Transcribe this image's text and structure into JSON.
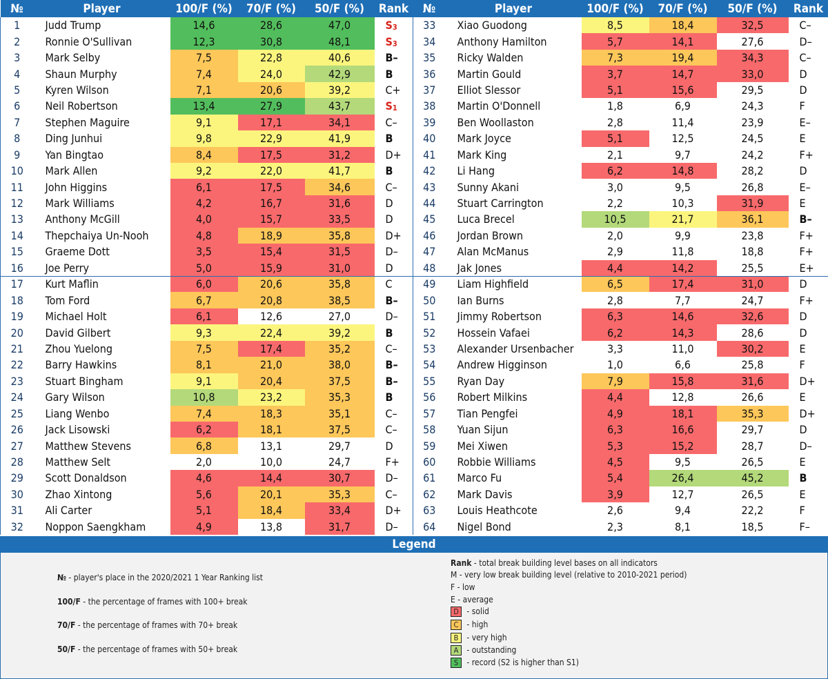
{
  "headers": {
    "num": "№",
    "player": "Player",
    "c100": "100/F (%)",
    "c70": "70/F (%)",
    "c50": "50/F (%)",
    "rank": "Rank"
  },
  "colors": {
    "red": "#f8696b",
    "orange": "#fdc75a",
    "yellow": "#fbf57e",
    "light_green": "#b3d97a",
    "green": "#52bd5c",
    "header_blue": "#1f6fb6"
  },
  "rows": [
    {
      "l": {
        "num": "1",
        "name": "Judd Trump",
        "v100": "14,6",
        "c100": "grn",
        "v70": "28,6",
        "c70": "grn",
        "v50": "47,0",
        "c50": "grn",
        "rank": "S",
        "sub": "3"
      },
      "r": {
        "num": "33",
        "name": "Xiao Guodong",
        "v100": "8,5",
        "c100": "yel",
        "v70": "18,4",
        "c70": "ora",
        "v50": "32,5",
        "c50": "red",
        "rank": "C–"
      }
    },
    {
      "l": {
        "num": "2",
        "name": "Ronnie O'Sullivan",
        "v100": "12,3",
        "c100": "grn",
        "v70": "30,8",
        "c70": "grn",
        "v50": "48,1",
        "c50": "grn",
        "rank": "S",
        "sub": "3"
      },
      "r": {
        "num": "34",
        "name": "Anthony Hamilton",
        "v100": "5,7",
        "c100": "red",
        "v70": "14,1",
        "c70": "red",
        "v50": "27,6",
        "c50": "wht",
        "rank": "D–"
      }
    },
    {
      "l": {
        "num": "3",
        "name": "Mark Selby",
        "v100": "7,5",
        "c100": "ora",
        "v70": "22,8",
        "c70": "yel",
        "v50": "40,6",
        "c50": "yel",
        "rank": "B–"
      },
      "r": {
        "num": "35",
        "name": "Ricky Walden",
        "v100": "7,3",
        "c100": "ora",
        "v70": "19,4",
        "c70": "ora",
        "v50": "34,3",
        "c50": "red",
        "rank": "C–"
      }
    },
    {
      "l": {
        "num": "4",
        "name": "Shaun Murphy",
        "v100": "7,4",
        "c100": "ora",
        "v70": "24,0",
        "c70": "yel",
        "v50": "42,9",
        "c50": "lgr",
        "rank": "B"
      },
      "r": {
        "num": "36",
        "name": "Martin Gould",
        "v100": "3,7",
        "c100": "red",
        "v70": "14,7",
        "c70": "red",
        "v50": "33,0",
        "c50": "red",
        "rank": "D"
      }
    },
    {
      "l": {
        "num": "5",
        "name": "Kyren Wilson",
        "v100": "7,1",
        "c100": "ora",
        "v70": "20,6",
        "c70": "ora",
        "v50": "39,2",
        "c50": "yel",
        "rank": "C+"
      },
      "r": {
        "num": "37",
        "name": "Elliot Slessor",
        "v100": "5,1",
        "c100": "red",
        "v70": "15,6",
        "c70": "red",
        "v50": "29,5",
        "c50": "wht",
        "rank": "D"
      }
    },
    {
      "l": {
        "num": "6",
        "name": "Neil Robertson",
        "v100": "13,4",
        "c100": "grn",
        "v70": "27,9",
        "c70": "grn",
        "v50": "43,7",
        "c50": "lgr",
        "rank": "S",
        "sub": "1"
      },
      "r": {
        "num": "38",
        "name": "Martin O'Donnell",
        "v100": "1,8",
        "c100": "wht",
        "v70": "6,9",
        "c70": "wht",
        "v50": "24,3",
        "c50": "wht",
        "rank": "F"
      }
    },
    {
      "l": {
        "num": "7",
        "name": "Stephen Maguire",
        "v100": "9,1",
        "c100": "yel",
        "v70": "17,1",
        "c70": "red",
        "v50": "34,1",
        "c50": "red",
        "rank": "C–"
      },
      "r": {
        "num": "39",
        "name": "Ben Woollaston",
        "v100": "2,8",
        "c100": "wht",
        "v70": "11,4",
        "c70": "wht",
        "v50": "23,9",
        "c50": "wht",
        "rank": "E–"
      }
    },
    {
      "l": {
        "num": "8",
        "name": "Ding Junhui",
        "v100": "9,8",
        "c100": "yel",
        "v70": "22,9",
        "c70": "yel",
        "v50": "41,9",
        "c50": "yel",
        "rank": "B"
      },
      "r": {
        "num": "40",
        "name": "Mark Joyce",
        "v100": "5,1",
        "c100": "red",
        "v70": "12,5",
        "c70": "wht",
        "v50": "24,5",
        "c50": "wht",
        "rank": "E"
      }
    },
    {
      "l": {
        "num": "9",
        "name": "Yan Bingtao",
        "v100": "8,4",
        "c100": "ora",
        "v70": "17,5",
        "c70": "red",
        "v50": "31,2",
        "c50": "red",
        "rank": "D+"
      },
      "r": {
        "num": "41",
        "name": "Mark King",
        "v100": "2,1",
        "c100": "wht",
        "v70": "9,7",
        "c70": "wht",
        "v50": "24,2",
        "c50": "wht",
        "rank": "F+"
      }
    },
    {
      "l": {
        "num": "10",
        "name": "Mark Allen",
        "v100": "9,2",
        "c100": "yel",
        "v70": "22,0",
        "c70": "yel",
        "v50": "41,7",
        "c50": "yel",
        "rank": "B"
      },
      "r": {
        "num": "42",
        "name": "Li Hang",
        "v100": "6,2",
        "c100": "red",
        "v70": "14,8",
        "c70": "red",
        "v50": "28,2",
        "c50": "wht",
        "rank": "D"
      }
    },
    {
      "l": {
        "num": "11",
        "name": "John Higgins",
        "v100": "6,1",
        "c100": "red",
        "v70": "17,5",
        "c70": "red",
        "v50": "34,6",
        "c50": "ora",
        "rank": "C–"
      },
      "r": {
        "num": "43",
        "name": "Sunny Akani",
        "v100": "3,0",
        "c100": "wht",
        "v70": "9,5",
        "c70": "wht",
        "v50": "26,8",
        "c50": "wht",
        "rank": "E–"
      }
    },
    {
      "l": {
        "num": "12",
        "name": "Mark Williams",
        "v100": "4,2",
        "c100": "red",
        "v70": "16,7",
        "c70": "red",
        "v50": "31,6",
        "c50": "red",
        "rank": "D"
      },
      "r": {
        "num": "44",
        "name": "Stuart Carrington",
        "v100": "2,2",
        "c100": "wht",
        "v70": "10,3",
        "c70": "wht",
        "v50": "31,9",
        "c50": "red",
        "rank": "E"
      }
    },
    {
      "l": {
        "num": "13",
        "name": "Anthony McGill",
        "v100": "4,0",
        "c100": "red",
        "v70": "15,7",
        "c70": "red",
        "v50": "33,5",
        "c50": "red",
        "rank": "D"
      },
      "r": {
        "num": "45",
        "name": "Luca Brecel",
        "v100": "10,5",
        "c100": "lgr",
        "v70": "21,7",
        "c70": "yel",
        "v50": "36,1",
        "c50": "ora",
        "rank": "B–"
      }
    },
    {
      "l": {
        "num": "14",
        "name": "Thepchaiya Un-Nooh",
        "v100": "4,8",
        "c100": "red",
        "v70": "18,9",
        "c70": "ora",
        "v50": "35,8",
        "c50": "ora",
        "rank": "D+"
      },
      "r": {
        "num": "46",
        "name": "Jordan Brown",
        "v100": "2,0",
        "c100": "wht",
        "v70": "9,9",
        "c70": "wht",
        "v50": "23,8",
        "c50": "wht",
        "rank": "F+"
      }
    },
    {
      "l": {
        "num": "15",
        "name": "Graeme Dott",
        "v100": "3,5",
        "c100": "red",
        "v70": "15,4",
        "c70": "red",
        "v50": "31,5",
        "c50": "red",
        "rank": "D–"
      },
      "r": {
        "num": "47",
        "name": "Alan McManus",
        "v100": "2,9",
        "c100": "wht",
        "v70": "11,8",
        "c70": "wht",
        "v50": "18,8",
        "c50": "wht",
        "rank": "F+"
      }
    },
    {
      "l": {
        "num": "16",
        "name": "Joe Perry",
        "v100": "5,0",
        "c100": "red",
        "v70": "15,9",
        "c70": "red",
        "v50": "31,0",
        "c50": "red",
        "rank": "D"
      },
      "r": {
        "num": "48",
        "name": "Jak Jones",
        "v100": "4,4",
        "c100": "red",
        "v70": "14,2",
        "c70": "red",
        "v50": "25,5",
        "c50": "wht",
        "rank": "E+"
      }
    },
    {
      "l": {
        "num": "17",
        "name": "Kurt Maflin",
        "v100": "6,0",
        "c100": "red",
        "v70": "20,6",
        "c70": "ora",
        "v50": "35,8",
        "c50": "ora",
        "rank": "C"
      },
      "r": {
        "num": "49",
        "name": "Liam Highfield",
        "v100": "6,5",
        "c100": "ora",
        "v70": "17,4",
        "c70": "red",
        "v50": "31,0",
        "c50": "red",
        "rank": "D"
      }
    },
    {
      "l": {
        "num": "18",
        "name": "Tom Ford",
        "v100": "6,7",
        "c100": "ora",
        "v70": "20,8",
        "c70": "ora",
        "v50": "38,5",
        "c50": "ora",
        "rank": "B–"
      },
      "r": {
        "num": "50",
        "name": "Ian Burns",
        "v100": "2,8",
        "c100": "wht",
        "v70": "7,7",
        "c70": "wht",
        "v50": "24,7",
        "c50": "wht",
        "rank": "F+"
      }
    },
    {
      "l": {
        "num": "19",
        "name": "Michael Holt",
        "v100": "6,1",
        "c100": "red",
        "v70": "12,6",
        "c70": "wht",
        "v50": "27,0",
        "c50": "wht",
        "rank": "D–"
      },
      "r": {
        "num": "51",
        "name": "Jimmy Robertson",
        "v100": "6,3",
        "c100": "red",
        "v70": "14,6",
        "c70": "red",
        "v50": "32,6",
        "c50": "red",
        "rank": "D"
      }
    },
    {
      "l": {
        "num": "20",
        "name": "David Gilbert",
        "v100": "9,3",
        "c100": "yel",
        "v70": "22,4",
        "c70": "yel",
        "v50": "39,2",
        "c50": "yel",
        "rank": "B"
      },
      "r": {
        "num": "52",
        "name": "Hossein Vafaei",
        "v100": "6,2",
        "c100": "red",
        "v70": "14,3",
        "c70": "red",
        "v50": "28,6",
        "c50": "wht",
        "rank": "D"
      }
    },
    {
      "l": {
        "num": "21",
        "name": "Zhou Yuelong",
        "v100": "7,5",
        "c100": "ora",
        "v70": "17,4",
        "c70": "red",
        "v50": "35,2",
        "c50": "ora",
        "rank": "C–"
      },
      "r": {
        "num": "53",
        "name": "Alexander Ursenbacher",
        "v100": "3,3",
        "c100": "wht",
        "v70": "11,0",
        "c70": "wht",
        "v50": "30,2",
        "c50": "red",
        "rank": "E"
      }
    },
    {
      "l": {
        "num": "22",
        "name": "Barry Hawkins",
        "v100": "8,1",
        "c100": "ora",
        "v70": "21,0",
        "c70": "ora",
        "v50": "38,0",
        "c50": "ora",
        "rank": "B–"
      },
      "r": {
        "num": "54",
        "name": "Andrew Higginson",
        "v100": "1,0",
        "c100": "wht",
        "v70": "6,6",
        "c70": "wht",
        "v50": "25,8",
        "c50": "wht",
        "rank": "F"
      }
    },
    {
      "l": {
        "num": "23",
        "name": "Stuart Bingham",
        "v100": "9,1",
        "c100": "yel",
        "v70": "20,4",
        "c70": "ora",
        "v50": "37,5",
        "c50": "ora",
        "rank": "B–"
      },
      "r": {
        "num": "55",
        "name": "Ryan Day",
        "v100": "7,9",
        "c100": "ora",
        "v70": "15,8",
        "c70": "red",
        "v50": "31,6",
        "c50": "red",
        "rank": "D+"
      }
    },
    {
      "l": {
        "num": "24",
        "name": "Gary Wilson",
        "v100": "10,8",
        "c100": "lgr",
        "v70": "23,2",
        "c70": "yel",
        "v50": "35,3",
        "c50": "ora",
        "rank": "B"
      },
      "r": {
        "num": "56",
        "name": "Robert Milkins",
        "v100": "4,4",
        "c100": "red",
        "v70": "12,8",
        "c70": "wht",
        "v50": "26,6",
        "c50": "wht",
        "rank": "E"
      }
    },
    {
      "l": {
        "num": "25",
        "name": "Liang Wenbo",
        "v100": "7,4",
        "c100": "ora",
        "v70": "18,3",
        "c70": "ora",
        "v50": "35,1",
        "c50": "ora",
        "rank": "C–"
      },
      "r": {
        "num": "57",
        "name": "Tian Pengfei",
        "v100": "4,9",
        "c100": "red",
        "v70": "18,1",
        "c70": "red",
        "v50": "35,3",
        "c50": "ora",
        "rank": "D+"
      }
    },
    {
      "l": {
        "num": "26",
        "name": "Jack Lisowski",
        "v100": "6,2",
        "c100": "red",
        "v70": "18,1",
        "c70": "ora",
        "v50": "37,5",
        "c50": "ora",
        "rank": "C–"
      },
      "r": {
        "num": "58",
        "name": "Yuan Sijun",
        "v100": "6,3",
        "c100": "red",
        "v70": "16,6",
        "c70": "red",
        "v50": "29,7",
        "c50": "wht",
        "rank": "D"
      }
    },
    {
      "l": {
        "num": "27",
        "name": "Matthew Stevens",
        "v100": "6,8",
        "c100": "ora",
        "v70": "13,1",
        "c70": "wht",
        "v50": "29,7",
        "c50": "wht",
        "rank": "D"
      },
      "r": {
        "num": "59",
        "name": "Mei Xiwen",
        "v100": "5,3",
        "c100": "red",
        "v70": "15,2",
        "c70": "red",
        "v50": "28,7",
        "c50": "wht",
        "rank": "D–"
      }
    },
    {
      "l": {
        "num": "28",
        "name": "Matthew Selt",
        "v100": "2,0",
        "c100": "wht",
        "v70": "10,0",
        "c70": "wht",
        "v50": "24,7",
        "c50": "wht",
        "rank": "F+"
      },
      "r": {
        "num": "60",
        "name": "Robbie Williams",
        "v100": "4,5",
        "c100": "red",
        "v70": "9,5",
        "c70": "wht",
        "v50": "26,5",
        "c50": "wht",
        "rank": "E"
      }
    },
    {
      "l": {
        "num": "29",
        "name": "Scott Donaldson",
        "v100": "4,6",
        "c100": "red",
        "v70": "14,4",
        "c70": "red",
        "v50": "30,7",
        "c50": "red",
        "rank": "D–"
      },
      "r": {
        "num": "61",
        "name": "Marco Fu",
        "v100": "5,4",
        "c100": "red",
        "v70": "26,4",
        "c70": "lgr",
        "v50": "45,2",
        "c50": "lgr",
        "rank": "B"
      }
    },
    {
      "l": {
        "num": "30",
        "name": "Zhao Xintong",
        "v100": "5,6",
        "c100": "red",
        "v70": "20,1",
        "c70": "ora",
        "v50": "35,3",
        "c50": "ora",
        "rank": "C–"
      },
      "r": {
        "num": "62",
        "name": "Mark Davis",
        "v100": "3,9",
        "c100": "red",
        "v70": "12,7",
        "c70": "wht",
        "v50": "26,5",
        "c50": "wht",
        "rank": "E"
      }
    },
    {
      "l": {
        "num": "31",
        "name": "Ali Carter",
        "v100": "5,1",
        "c100": "red",
        "v70": "18,4",
        "c70": "ora",
        "v50": "33,4",
        "c50": "red",
        "rank": "D+"
      },
      "r": {
        "num": "63",
        "name": "Louis Heathcote",
        "v100": "2,6",
        "c100": "wht",
        "v70": "9,4",
        "c70": "wht",
        "v50": "22,2",
        "c50": "wht",
        "rank": "F"
      }
    },
    {
      "l": {
        "num": "32",
        "name": "Noppon Saengkham",
        "v100": "4,9",
        "c100": "red",
        "v70": "13,8",
        "c70": "wht",
        "v50": "31,7",
        "c50": "red",
        "rank": "D–"
      },
      "r": {
        "num": "64",
        "name": "Nigel Bond",
        "v100": "2,3",
        "c100": "wht",
        "v70": "8,1",
        "c70": "wht",
        "v50": "18,5",
        "c50": "wht",
        "rank": "F–"
      }
    }
  ],
  "legend": {
    "title": "Legend",
    "defs": [
      {
        "key": "№",
        "text": " - player's place in the 2020/2021 1 Year Ranking list"
      },
      {
        "key": "100/F",
        "text": " - the percentage of frames with 100+ break"
      },
      {
        "key": "70/F",
        "text": " - the percentage of frames with 70+ break"
      },
      {
        "key": "50/F",
        "text": " - the percentage of frames with 50+ break"
      }
    ],
    "rank_key": "Rank",
    "rank_text": " - total break building level bases on all indicators",
    "levels": [
      {
        "key": "M",
        "text": " - very low break building level (relative to 2010-2021 period)"
      },
      {
        "key": "F",
        "text": " - low"
      },
      {
        "key": "E",
        "text": " - average"
      }
    ],
    "swatches": [
      {
        "key": "D",
        "text": " - solid",
        "color": "red"
      },
      {
        "key": "C",
        "text": " - high",
        "color": "ora"
      },
      {
        "key": "B",
        "text": " - very high",
        "color": "yel"
      },
      {
        "key": "A",
        "text": " - outstanding",
        "color": "lgr"
      },
      {
        "key": "S",
        "text": " - record (S2 is higher than S1)",
        "color": "grn"
      }
    ]
  }
}
